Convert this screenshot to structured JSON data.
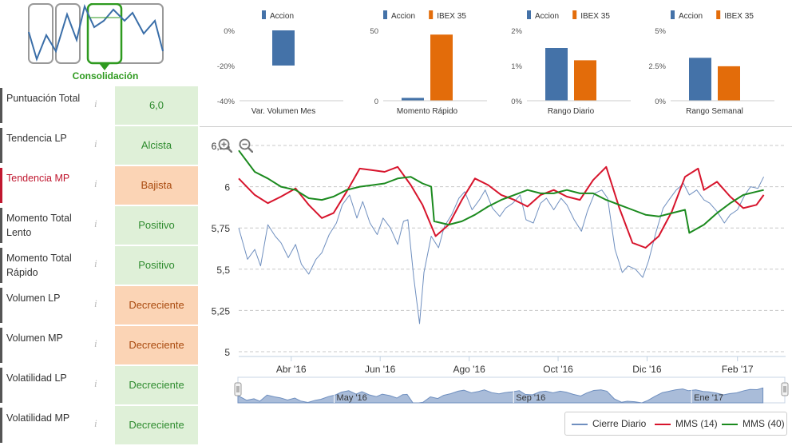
{
  "pattern": {
    "label": "Consolidación",
    "colors": {
      "active": "#2e9a1f",
      "inactive": "#999999",
      "line": "#3a6ea8"
    }
  },
  "indicators": [
    {
      "label": "Puntuación Total",
      "value": "6,0",
      "status": "green"
    },
    {
      "label": "Tendencia LP",
      "value": "Alcista",
      "status": "green"
    },
    {
      "label": "Tendencia MP",
      "value": "Bajista",
      "status": "orange",
      "highlight": true
    },
    {
      "label": "Momento Total Lento",
      "value": "Positivo",
      "status": "green"
    },
    {
      "label": "Momento Total Rápido",
      "value": "Positivo",
      "status": "green"
    },
    {
      "label": "Volumen LP",
      "value": "Decreciente",
      "status": "orange"
    },
    {
      "label": "Volumen MP",
      "value": "Decreciente",
      "status": "orange"
    },
    {
      "label": "Volatilidad LP",
      "value": "Decreciente",
      "status": "green"
    },
    {
      "label": "Volatilidad MP",
      "value": "Decreciente",
      "status": "green"
    }
  ],
  "mini_charts": [
    {
      "type": "bar",
      "legend": [
        "Accion"
      ],
      "xlabel": "Var. Volumen Mes",
      "yticks": [
        "0%",
        "-20%",
        "-40%"
      ],
      "ylim": [
        -40,
        0
      ],
      "values": {
        "Accion": -20
      }
    },
    {
      "type": "bar",
      "legend": [
        "Accion",
        "IBEX 35"
      ],
      "xlabel": "Momento Rápido",
      "yticks": [
        "50",
        "0"
      ],
      "ylim": [
        0,
        50
      ],
      "values": {
        "Accion": 2,
        "IBEX 35": 47
      }
    },
    {
      "type": "bar",
      "legend": [
        "Accion",
        "IBEX 35"
      ],
      "xlabel": "Rango Diario",
      "yticks": [
        "2%",
        "1%",
        "0%"
      ],
      "ylim": [
        0,
        2
      ],
      "values": {
        "Accion": 1.5,
        "IBEX 35": 1.15
      }
    },
    {
      "type": "bar",
      "legend": [
        "Accion",
        "IBEX 35"
      ],
      "xlabel": "Rango Semanal",
      "yticks": [
        "5%",
        "2.5%",
        "0%"
      ],
      "ylim": [
        0,
        5
      ],
      "values": {
        "Accion": 3.05,
        "IBEX 35": 2.45
      }
    }
  ],
  "series_colors": {
    "Accion": "#4472a8",
    "IBEX 35": "#e36c0a"
  },
  "chart_data": {
    "type": "line",
    "ylim": [
      5,
      6.25
    ],
    "yticks": [
      5,
      5.25,
      5.5,
      5.75,
      6,
      6.25
    ],
    "ytick_labels": [
      "5",
      "5,25",
      "5,5",
      "5,75",
      "6",
      "6,25"
    ],
    "xlim": [
      "2016-02-25",
      "2017-03-06"
    ],
    "xticks": [
      {
        "date": "2016-04-01",
        "label": "Abr '16"
      },
      {
        "date": "2016-06-01",
        "label": "Jun '16"
      },
      {
        "date": "2016-08-01",
        "label": "Ago '16"
      },
      {
        "date": "2016-10-01",
        "label": "Oct '16"
      },
      {
        "date": "2016-12-01",
        "label": "Dic '16"
      },
      {
        "date": "2017-02-01",
        "label": "Feb '17"
      }
    ],
    "grid": true,
    "series": [
      {
        "name": "Cierre Diario",
        "color": "#6f8fbf",
        "points": [
          [
            "2016-02-25",
            5.75
          ],
          [
            "2016-03-02",
            5.56
          ],
          [
            "2016-03-07",
            5.62
          ],
          [
            "2016-03-11",
            5.52
          ],
          [
            "2016-03-16",
            5.77
          ],
          [
            "2016-03-21",
            5.7
          ],
          [
            "2016-03-25",
            5.66
          ],
          [
            "2016-03-30",
            5.57
          ],
          [
            "2016-04-04",
            5.65
          ],
          [
            "2016-04-08",
            5.53
          ],
          [
            "2016-04-13",
            5.47
          ],
          [
            "2016-04-18",
            5.56
          ],
          [
            "2016-04-22",
            5.6
          ],
          [
            "2016-04-27",
            5.71
          ],
          [
            "2016-05-02",
            5.78
          ],
          [
            "2016-05-06",
            5.89
          ],
          [
            "2016-05-11",
            5.95
          ],
          [
            "2016-05-16",
            5.81
          ],
          [
            "2016-05-20",
            5.91
          ],
          [
            "2016-05-25",
            5.78
          ],
          [
            "2016-05-30",
            5.71
          ],
          [
            "2016-06-03",
            5.81
          ],
          [
            "2016-06-08",
            5.75
          ],
          [
            "2016-06-13",
            5.65
          ],
          [
            "2016-06-17",
            5.79
          ],
          [
            "2016-06-20",
            5.8
          ],
          [
            "2016-06-24",
            5.45
          ],
          [
            "2016-06-28",
            5.17
          ],
          [
            "2016-07-01",
            5.48
          ],
          [
            "2016-07-06",
            5.7
          ],
          [
            "2016-07-11",
            5.63
          ],
          [
            "2016-07-15",
            5.76
          ],
          [
            "2016-07-20",
            5.83
          ],
          [
            "2016-07-25",
            5.93
          ],
          [
            "2016-07-29",
            5.97
          ],
          [
            "2016-08-03",
            5.86
          ],
          [
            "2016-08-08",
            5.92
          ],
          [
            "2016-08-12",
            5.98
          ],
          [
            "2016-08-17",
            5.87
          ],
          [
            "2016-08-22",
            5.82
          ],
          [
            "2016-08-26",
            5.87
          ],
          [
            "2016-08-31",
            5.9
          ],
          [
            "2016-09-05",
            5.95
          ],
          [
            "2016-09-09",
            5.8
          ],
          [
            "2016-09-14",
            5.78
          ],
          [
            "2016-09-19",
            5.9
          ],
          [
            "2016-09-23",
            5.93
          ],
          [
            "2016-09-28",
            5.86
          ],
          [
            "2016-10-03",
            5.93
          ],
          [
            "2016-10-07",
            5.89
          ],
          [
            "2016-10-12",
            5.8
          ],
          [
            "2016-10-17",
            5.73
          ],
          [
            "2016-10-21",
            5.85
          ],
          [
            "2016-10-26",
            5.96
          ],
          [
            "2016-10-31",
            5.98
          ],
          [
            "2016-11-04",
            5.93
          ],
          [
            "2016-11-09",
            5.62
          ],
          [
            "2016-11-14",
            5.48
          ],
          [
            "2016-11-18",
            5.52
          ],
          [
            "2016-11-23",
            5.5
          ],
          [
            "2016-11-28",
            5.45
          ],
          [
            "2016-12-02",
            5.55
          ],
          [
            "2016-12-07",
            5.72
          ],
          [
            "2016-12-12",
            5.87
          ],
          [
            "2016-12-16",
            5.92
          ],
          [
            "2016-12-21",
            5.98
          ],
          [
            "2016-12-26",
            6.02
          ],
          [
            "2016-12-30",
            5.95
          ],
          [
            "2017-01-04",
            5.98
          ],
          [
            "2017-01-09",
            5.92
          ],
          [
            "2017-01-13",
            5.9
          ],
          [
            "2017-01-18",
            5.85
          ],
          [
            "2017-01-23",
            5.78
          ],
          [
            "2017-01-27",
            5.83
          ],
          [
            "2017-02-01",
            5.86
          ],
          [
            "2017-02-06",
            5.95
          ],
          [
            "2017-02-10",
            6.0
          ],
          [
            "2017-02-15",
            5.99
          ],
          [
            "2017-02-19",
            6.06
          ]
        ]
      },
      {
        "name": "MMS (14)",
        "color": "#d7142c",
        "points": [
          [
            "2016-02-25",
            6.05
          ],
          [
            "2016-03-07",
            5.95
          ],
          [
            "2016-03-16",
            5.9
          ],
          [
            "2016-03-25",
            5.94
          ],
          [
            "2016-04-04",
            5.99
          ],
          [
            "2016-04-13",
            5.89
          ],
          [
            "2016-04-22",
            5.81
          ],
          [
            "2016-04-30",
            5.84
          ],
          [
            "2016-05-09",
            5.97
          ],
          [
            "2016-05-18",
            6.11
          ],
          [
            "2016-05-27",
            6.1
          ],
          [
            "2016-06-04",
            6.09
          ],
          [
            "2016-06-13",
            6.12
          ],
          [
            "2016-06-22",
            6.01
          ],
          [
            "2016-06-30",
            5.89
          ],
          [
            "2016-07-09",
            5.7
          ],
          [
            "2016-07-18",
            5.77
          ],
          [
            "2016-07-27",
            5.92
          ],
          [
            "2016-08-05",
            6.05
          ],
          [
            "2016-08-14",
            6.01
          ],
          [
            "2016-08-23",
            5.95
          ],
          [
            "2016-09-01",
            5.92
          ],
          [
            "2016-09-10",
            5.88
          ],
          [
            "2016-09-19",
            5.95
          ],
          [
            "2016-09-28",
            5.98
          ],
          [
            "2016-10-07",
            5.94
          ],
          [
            "2016-10-16",
            5.92
          ],
          [
            "2016-10-25",
            6.04
          ],
          [
            "2016-11-03",
            6.12
          ],
          [
            "2016-11-12",
            5.87
          ],
          [
            "2016-11-21",
            5.66
          ],
          [
            "2016-11-30",
            5.63
          ],
          [
            "2016-12-09",
            5.7
          ],
          [
            "2016-12-18",
            5.85
          ],
          [
            "2016-12-27",
            6.06
          ],
          [
            "2017-01-05",
            6.11
          ],
          [
            "2017-01-09",
            5.98
          ],
          [
            "2017-01-18",
            6.03
          ],
          [
            "2017-01-27",
            5.94
          ],
          [
            "2017-02-05",
            5.87
          ],
          [
            "2017-02-14",
            5.89
          ],
          [
            "2017-02-19",
            5.95
          ]
        ]
      },
      {
        "name": "MMS (40)",
        "color": "#1b8a1e",
        "points": [
          [
            "2016-02-25",
            6.22
          ],
          [
            "2016-03-07",
            6.09
          ],
          [
            "2016-03-16",
            6.05
          ],
          [
            "2016-03-25",
            6.0
          ],
          [
            "2016-04-04",
            5.98
          ],
          [
            "2016-04-13",
            5.93
          ],
          [
            "2016-04-22",
            5.92
          ],
          [
            "2016-04-30",
            5.94
          ],
          [
            "2016-05-09",
            5.98
          ],
          [
            "2016-05-18",
            6.0
          ],
          [
            "2016-05-27",
            6.01
          ],
          [
            "2016-06-04",
            6.02
          ],
          [
            "2016-06-13",
            6.05
          ],
          [
            "2016-06-22",
            6.06
          ],
          [
            "2016-06-30",
            6.02
          ],
          [
            "2016-07-06",
            6.0
          ],
          [
            "2016-07-08",
            5.79
          ],
          [
            "2016-07-18",
            5.77
          ],
          [
            "2016-07-27",
            5.79
          ],
          [
            "2016-08-05",
            5.83
          ],
          [
            "2016-08-14",
            5.88
          ],
          [
            "2016-08-23",
            5.92
          ],
          [
            "2016-09-01",
            5.95
          ],
          [
            "2016-09-10",
            5.98
          ],
          [
            "2016-09-19",
            5.96
          ],
          [
            "2016-09-28",
            5.96
          ],
          [
            "2016-10-07",
            5.98
          ],
          [
            "2016-10-16",
            5.96
          ],
          [
            "2016-10-25",
            5.96
          ],
          [
            "2016-11-03",
            5.92
          ],
          [
            "2016-11-12",
            5.89
          ],
          [
            "2016-11-21",
            5.86
          ],
          [
            "2016-11-30",
            5.83
          ],
          [
            "2016-12-09",
            5.82
          ],
          [
            "2016-12-18",
            5.84
          ],
          [
            "2016-12-27",
            5.86
          ],
          [
            "2016-12-30",
            5.72
          ],
          [
            "2017-01-09",
            5.77
          ],
          [
            "2017-01-18",
            5.84
          ],
          [
            "2017-01-27",
            5.9
          ],
          [
            "2017-02-05",
            5.95
          ],
          [
            "2017-02-14",
            5.97
          ],
          [
            "2017-02-19",
            5.98
          ]
        ]
      }
    ],
    "navigator_labels": [
      {
        "date": "2016-05-01",
        "label": "May '16"
      },
      {
        "date": "2016-09-01",
        "label": "Sep '16"
      },
      {
        "date": "2017-01-01",
        "label": "Ene '17"
      }
    ]
  }
}
